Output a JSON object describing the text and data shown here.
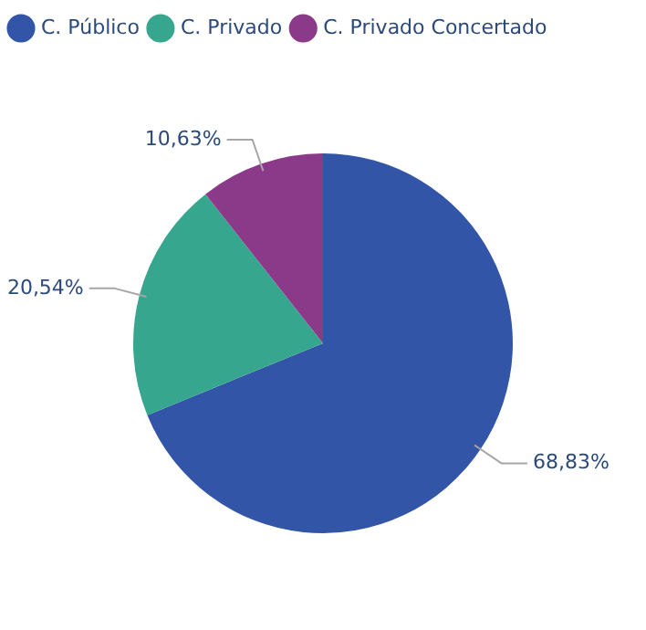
{
  "chart_data": {
    "type": "pie",
    "categories": [
      "C. Público",
      "C. Privado",
      "C. Privado Concertado"
    ],
    "values": [
      68.83,
      20.54,
      10.63
    ],
    "colors": [
      "#3355a8",
      "#36a68f",
      "#8b3a8a"
    ],
    "value_labels": [
      "68,83%",
      "20,54%",
      "10,63%"
    ],
    "legend": "top left"
  }
}
